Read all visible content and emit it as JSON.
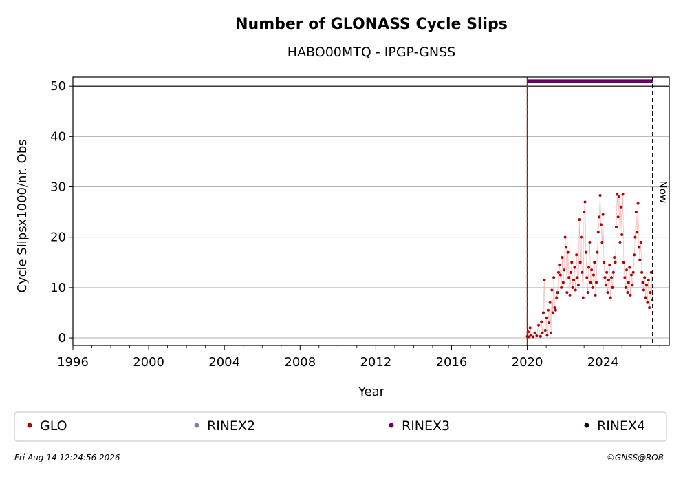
{
  "chart_data": {
    "type": "scatter",
    "title": "Number of GLONASS Cycle Slips",
    "subtitle": "HABO00MTQ - IPGP-GNSS",
    "xlabel": "Year",
    "ylabel": "Cycle Slipsx1000/nr. Obs",
    "xlim": [
      1996,
      2027.5
    ],
    "ylim": [
      -1.5,
      51.8
    ],
    "x_ticks": [
      "1996",
      "2000",
      "2004",
      "2008",
      "2012",
      "2016",
      "2020",
      "2024"
    ],
    "y_ticks": [
      "0",
      "10",
      "20",
      "30",
      "40",
      "50"
    ],
    "grid": "horizontal",
    "reference_line_y": 50,
    "start_line_x": 2020.0,
    "now_line_x": 2026.62,
    "now_label": "Now",
    "rinex3_bar": {
      "x_start": 2020.0,
      "x_end": 2026.62,
      "y": 51
    },
    "series": [
      {
        "name": "GLO",
        "color": "#b30000",
        "points": [
          [
            2020.0,
            0.3
          ],
          [
            2020.05,
            1.2
          ],
          [
            2020.1,
            0.2
          ],
          [
            2020.15,
            2.0
          ],
          [
            2020.2,
            0.5
          ],
          [
            2020.3,
            0.2
          ],
          [
            2020.4,
            1.0
          ],
          [
            2020.5,
            0.4
          ],
          [
            2020.6,
            2.5
          ],
          [
            2020.7,
            0.3
          ],
          [
            2020.75,
            3.2
          ],
          [
            2020.8,
            1.0
          ],
          [
            2020.85,
            5.0
          ],
          [
            2020.9,
            11.5
          ],
          [
            2020.95,
            1.5
          ],
          [
            2021.0,
            4.0
          ],
          [
            2021.05,
            0.5
          ],
          [
            2021.1,
            5.5
          ],
          [
            2021.15,
            3.0
          ],
          [
            2021.2,
            7.0
          ],
          [
            2021.25,
            1.0
          ],
          [
            2021.3,
            9.5
          ],
          [
            2021.35,
            5.0
          ],
          [
            2021.4,
            12.0
          ],
          [
            2021.45,
            6.0
          ],
          [
            2021.5,
            5.5
          ],
          [
            2021.55,
            8.0
          ],
          [
            2021.6,
            9.0
          ],
          [
            2021.65,
            13.0
          ],
          [
            2021.7,
            14.5
          ],
          [
            2021.75,
            12.5
          ],
          [
            2021.8,
            10.0
          ],
          [
            2021.85,
            16.0
          ],
          [
            2021.9,
            11.0
          ],
          [
            2021.95,
            13.5
          ],
          [
            2022.0,
            20.0
          ],
          [
            2022.05,
            18.0
          ],
          [
            2022.1,
            9.0
          ],
          [
            2022.15,
            17.0
          ],
          [
            2022.2,
            12.0
          ],
          [
            2022.25,
            8.5
          ],
          [
            2022.3,
            13.0
          ],
          [
            2022.35,
            15.0
          ],
          [
            2022.4,
            10.0
          ],
          [
            2022.45,
            11.5
          ],
          [
            2022.5,
            14.0
          ],
          [
            2022.55,
            9.5
          ],
          [
            2022.6,
            16.5
          ],
          [
            2022.65,
            12.0
          ],
          [
            2022.7,
            10.5
          ],
          [
            2022.75,
            23.5
          ],
          [
            2022.8,
            15.0
          ],
          [
            2022.85,
            20.0
          ],
          [
            2022.9,
            13.0
          ],
          [
            2022.95,
            8.0
          ],
          [
            2023.0,
            25.0
          ],
          [
            2023.05,
            27.0
          ],
          [
            2023.1,
            17.0
          ],
          [
            2023.15,
            12.0
          ],
          [
            2023.2,
            9.0
          ],
          [
            2023.25,
            14.0
          ],
          [
            2023.3,
            19.0
          ],
          [
            2023.35,
            11.0
          ],
          [
            2023.4,
            13.5
          ],
          [
            2023.45,
            10.0
          ],
          [
            2023.5,
            12.5
          ],
          [
            2023.55,
            15.0
          ],
          [
            2023.6,
            8.5
          ],
          [
            2023.65,
            11.0
          ],
          [
            2023.7,
            17.0
          ],
          [
            2023.75,
            21.0
          ],
          [
            2023.8,
            24.0
          ],
          [
            2023.85,
            28.3
          ],
          [
            2023.9,
            22.5
          ],
          [
            2023.95,
            19.0
          ],
          [
            2024.0,
            24.5
          ],
          [
            2024.05,
            15.0
          ],
          [
            2024.1,
            12.0
          ],
          [
            2024.15,
            10.5
          ],
          [
            2024.2,
            13.0
          ],
          [
            2024.25,
            9.0
          ],
          [
            2024.3,
            11.5
          ],
          [
            2024.35,
            14.5
          ],
          [
            2024.4,
            8.0
          ],
          [
            2024.45,
            12.0
          ],
          [
            2024.5,
            10.0
          ],
          [
            2024.55,
            13.0
          ],
          [
            2024.6,
            16.0
          ],
          [
            2024.65,
            15.0
          ],
          [
            2024.7,
            22.0
          ],
          [
            2024.75,
            28.5
          ],
          [
            2024.8,
            24.0
          ],
          [
            2024.85,
            28.0
          ],
          [
            2024.9,
            19.0
          ],
          [
            2024.95,
            26.0
          ],
          [
            2025.0,
            20.5
          ],
          [
            2025.05,
            28.5
          ],
          [
            2025.1,
            15.0
          ],
          [
            2025.15,
            12.0
          ],
          [
            2025.2,
            10.0
          ],
          [
            2025.25,
            13.5
          ],
          [
            2025.3,
            9.0
          ],
          [
            2025.35,
            11.0
          ],
          [
            2025.4,
            14.0
          ],
          [
            2025.45,
            8.5
          ],
          [
            2025.5,
            12.5
          ],
          [
            2025.55,
            10.5
          ],
          [
            2025.6,
            13.0
          ],
          [
            2025.65,
            16.5
          ],
          [
            2025.7,
            20.0
          ],
          [
            2025.75,
            25.0
          ],
          [
            2025.8,
            21.0
          ],
          [
            2025.85,
            26.7
          ],
          [
            2025.9,
            18.0
          ],
          [
            2025.95,
            15.5
          ],
          [
            2026.0,
            19.0
          ],
          [
            2026.05,
            13.0
          ],
          [
            2026.1,
            11.0
          ],
          [
            2026.15,
            9.5
          ],
          [
            2026.2,
            12.0
          ],
          [
            2026.25,
            8.0
          ],
          [
            2026.3,
            10.5
          ],
          [
            2026.35,
            7.0
          ],
          [
            2026.4,
            11.5
          ],
          [
            2026.45,
            6.0
          ],
          [
            2026.5,
            9.0
          ],
          [
            2026.55,
            13.0
          ],
          [
            2026.6,
            7.5
          ]
        ]
      },
      {
        "name": "RINEX2",
        "color": "#7b7bbf",
        "points": []
      },
      {
        "name": "RINEX3",
        "color": "#660066",
        "points": []
      },
      {
        "name": "RINEX4",
        "color": "#1a0020",
        "points": []
      }
    ],
    "legend": [
      "GLO",
      "RINEX2",
      "RINEX3",
      "RINEX4"
    ],
    "legend_placement": "bottom"
  },
  "footer": {
    "timestamp": "Fri Aug 14 12:24:56 2026",
    "credit": "©GNSS@ROB"
  }
}
